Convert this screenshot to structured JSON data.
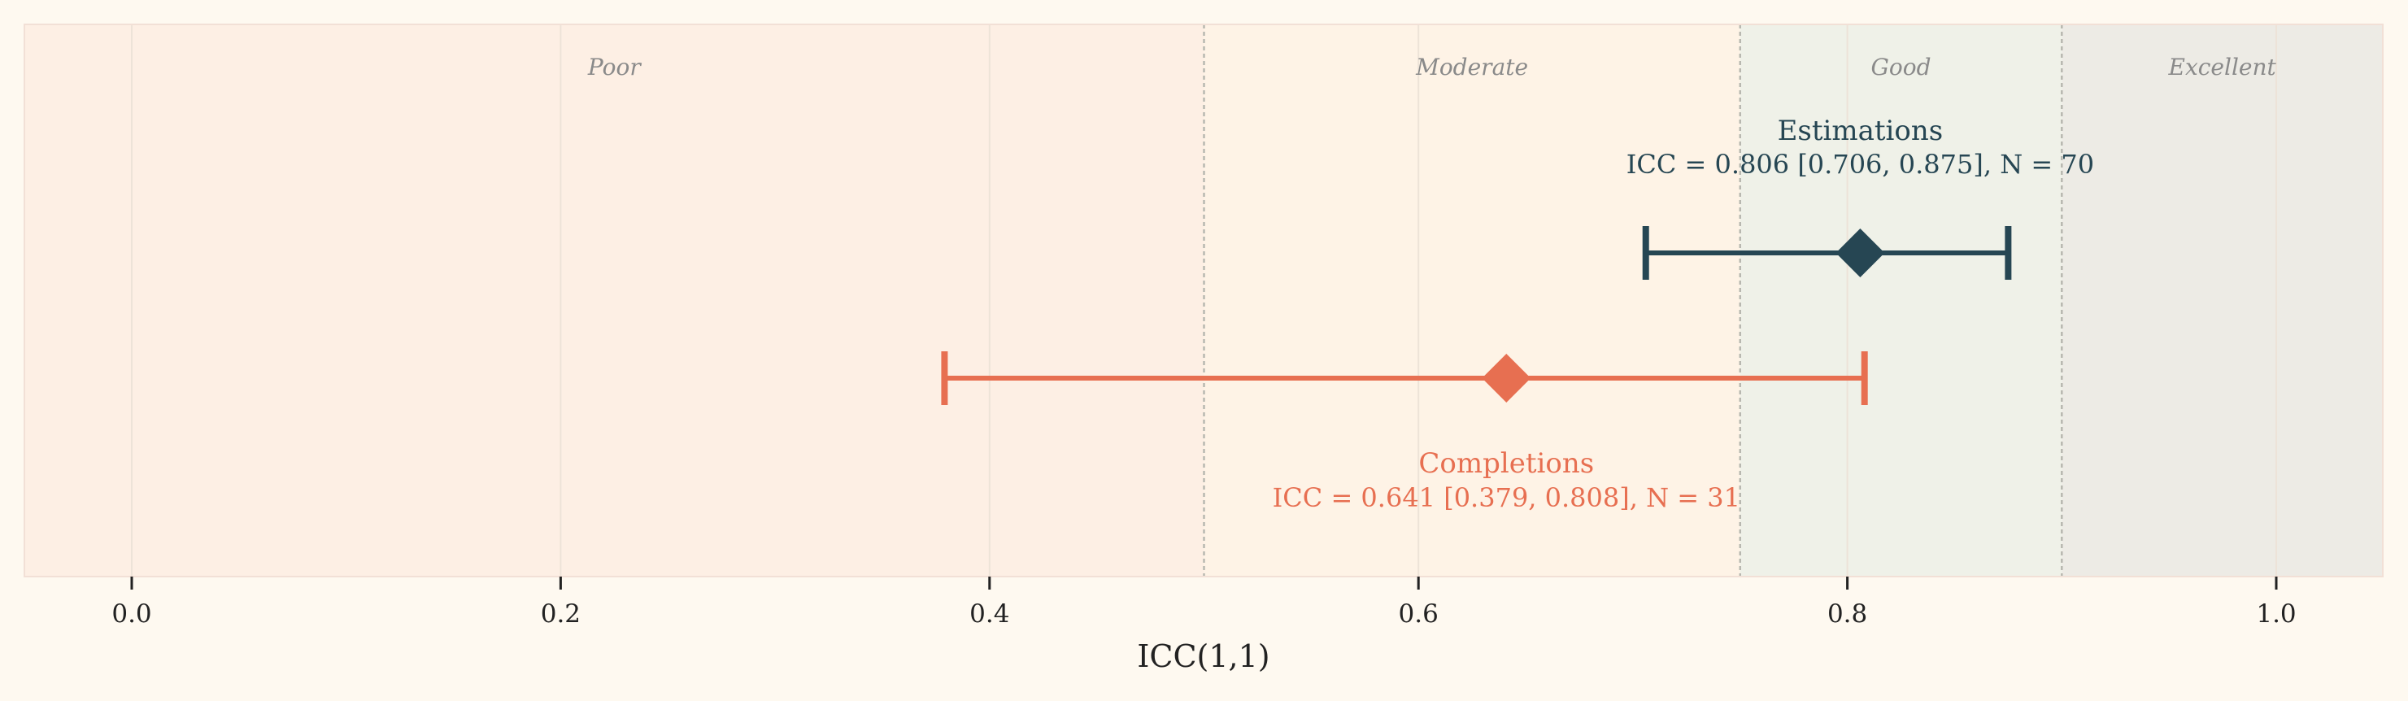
{
  "chart_data": {
    "type": "forest",
    "title": "",
    "xlabel": "ICC(1,1)",
    "ylabel": "",
    "xlim": [
      -0.05,
      1.05
    ],
    "xticks": [
      0.0,
      0.2,
      0.4,
      0.6,
      0.8,
      1.0
    ],
    "xtick_labels": [
      "0.0",
      "0.2",
      "0.4",
      "0.6",
      "0.8",
      "1.0"
    ],
    "grid": true,
    "bands": [
      {
        "label": "Poor",
        "from": -0.05,
        "to": 0.5,
        "color": "#FDEFE4"
      },
      {
        "label": "Moderate",
        "from": 0.5,
        "to": 0.75,
        "color": "#FEF3E6"
      },
      {
        "label": "Good",
        "from": 0.75,
        "to": 0.9,
        "color": "#EFF1E8"
      },
      {
        "label": "Excellent",
        "from": 0.9,
        "to": 1.05,
        "color": "#EDEBE5"
      }
    ],
    "thresholds": [
      0.5,
      0.75,
      0.9
    ],
    "series": [
      {
        "name": "Estimations",
        "icc": 0.806,
        "ci_low": 0.706,
        "ci_high": 0.875,
        "n": 70,
        "color": "#264653",
        "annotation_title": "Estimations",
        "annotation_text": "ICC = 0.806 [0.706, 0.875], N = 70"
      },
      {
        "name": "Completions",
        "icc": 0.641,
        "ci_low": 0.379,
        "ci_high": 0.808,
        "n": 31,
        "color": "#E76F51",
        "annotation_title": "Completions",
        "annotation_text": "ICC = 0.641 [0.379, 0.808], N = 31"
      }
    ]
  }
}
